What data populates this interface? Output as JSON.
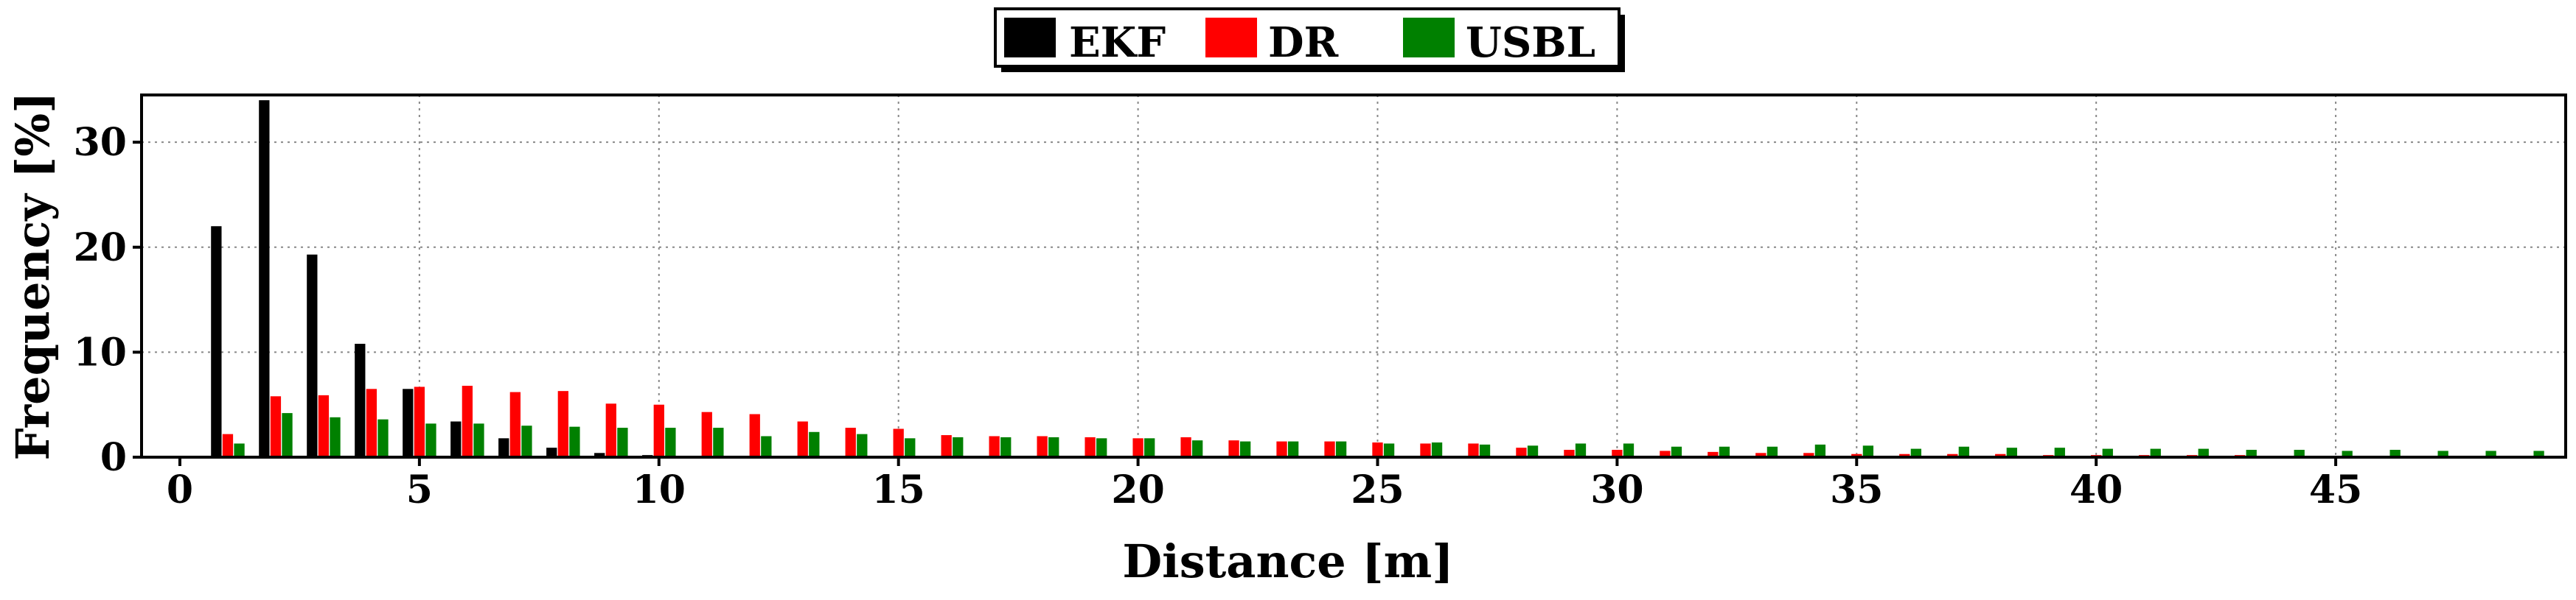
{
  "chart_data": {
    "type": "bar",
    "title": "",
    "xlabel": "Distance [m]",
    "ylabel": "Frequency [%]",
    "xlim": [
      -0.8,
      49.8
    ],
    "ylim": [
      0,
      34.5
    ],
    "xticks": [
      0,
      5,
      10,
      15,
      20,
      25,
      30,
      35,
      40,
      45
    ],
    "yticks": [
      0,
      10,
      20,
      30
    ],
    "grid": true,
    "legend": "top-center",
    "x": [
      1,
      2,
      3,
      4,
      5,
      6,
      7,
      8,
      9,
      10,
      11,
      12,
      13,
      14,
      15,
      16,
      17,
      18,
      19,
      20,
      21,
      22,
      23,
      24,
      25,
      26,
      27,
      28,
      29,
      30,
      31,
      32,
      33,
      34,
      35,
      36,
      37,
      38,
      39,
      40,
      41,
      42,
      43,
      44,
      45,
      46,
      47,
      48,
      49
    ],
    "series": [
      {
        "name": "EKF",
        "color": "#000000",
        "values": [
          22.0,
          34.0,
          19.3,
          10.8,
          6.5,
          3.4,
          1.8,
          0.9,
          0.4,
          0.2,
          0.1,
          0,
          0,
          0,
          0,
          0,
          0,
          0,
          0,
          0,
          0,
          0,
          0,
          0,
          0,
          0,
          0,
          0,
          0,
          0,
          0,
          0,
          0,
          0,
          0,
          0,
          0,
          0,
          0,
          0,
          0,
          0,
          0,
          0,
          0,
          0,
          0,
          0,
          0
        ]
      },
      {
        "name": "DR",
        "color": "#ff0000",
        "values": [
          2.2,
          5.8,
          5.9,
          6.5,
          6.7,
          6.8,
          6.2,
          6.3,
          5.1,
          5.0,
          4.3,
          4.1,
          3.4,
          2.8,
          2.7,
          2.1,
          2.0,
          2.0,
          1.9,
          1.8,
          1.9,
          1.6,
          1.5,
          1.5,
          1.4,
          1.3,
          1.3,
          0.9,
          0.7,
          0.7,
          0.6,
          0.5,
          0.4,
          0.4,
          0.3,
          0.3,
          0.3,
          0.3,
          0.2,
          0.2,
          0.2,
          0.2,
          0.2,
          0.1,
          0.1,
          0.1,
          0.1,
          0.1,
          0.1
        ]
      },
      {
        "name": "USBL",
        "color": "#008000",
        "values": [
          1.3,
          4.2,
          3.8,
          3.6,
          3.2,
          3.2,
          3.0,
          2.9,
          2.8,
          2.8,
          2.8,
          2.0,
          2.4,
          2.2,
          1.8,
          1.9,
          1.9,
          1.9,
          1.8,
          1.8,
          1.6,
          1.5,
          1.5,
          1.5,
          1.3,
          1.4,
          1.2,
          1.1,
          1.3,
          1.3,
          1.0,
          1.0,
          1.0,
          1.2,
          1.1,
          0.8,
          1.0,
          0.9,
          0.9,
          0.8,
          0.8,
          0.8,
          0.7,
          0.7,
          0.6,
          0.7,
          0.6,
          0.6,
          0.6
        ]
      }
    ]
  }
}
